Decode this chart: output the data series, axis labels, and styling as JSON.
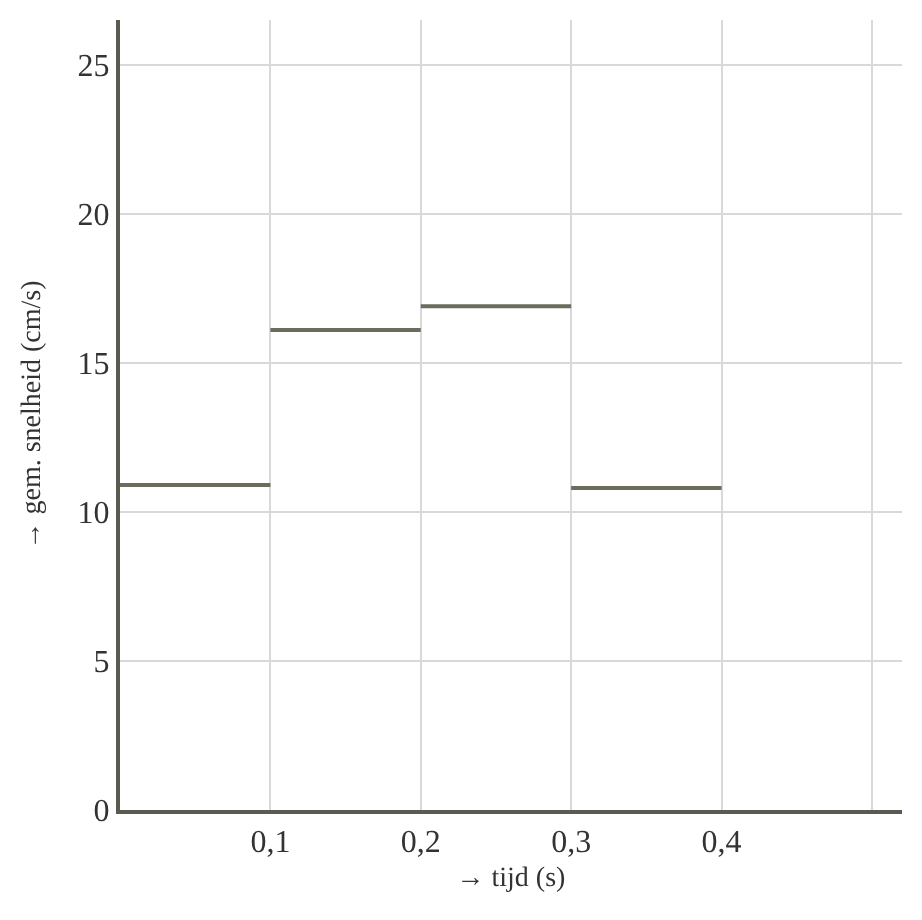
{
  "chart_data": {
    "type": "line",
    "xlabel": "→ tijd (s)",
    "ylabel": "→ gem. snelheid (cm/s)",
    "series": [
      {
        "x": [
          0,
          0.1
        ],
        "values": [
          10.9,
          10.9
        ],
        "color": "#6b6b5e"
      },
      {
        "x": [
          0.1,
          0.2
        ],
        "values": [
          16.1,
          16.1
        ],
        "color": "#6b6b5e"
      },
      {
        "x": [
          0.2,
          0.3
        ],
        "values": [
          16.9,
          16.9
        ],
        "color": "#6b6b5e"
      },
      {
        "x": [
          0.3,
          0.4
        ],
        "values": [
          10.8,
          10.8
        ],
        "color": "#6b6b5e"
      }
    ],
    "xlim": [
      0,
      0.52
    ],
    "ylim": [
      0,
      26.5
    ],
    "xticks": [
      {
        "value": 0.1,
        "label": "0,1"
      },
      {
        "value": 0.2,
        "label": "0,2"
      },
      {
        "value": 0.3,
        "label": "0,3"
      },
      {
        "value": 0.4,
        "label": "0,4"
      },
      {
        "value": 0.5,
        "label": null
      }
    ],
    "yticks": [
      0,
      5,
      10,
      15,
      20,
      25
    ],
    "grid": true,
    "marker": "none",
    "line_style": "solid"
  }
}
